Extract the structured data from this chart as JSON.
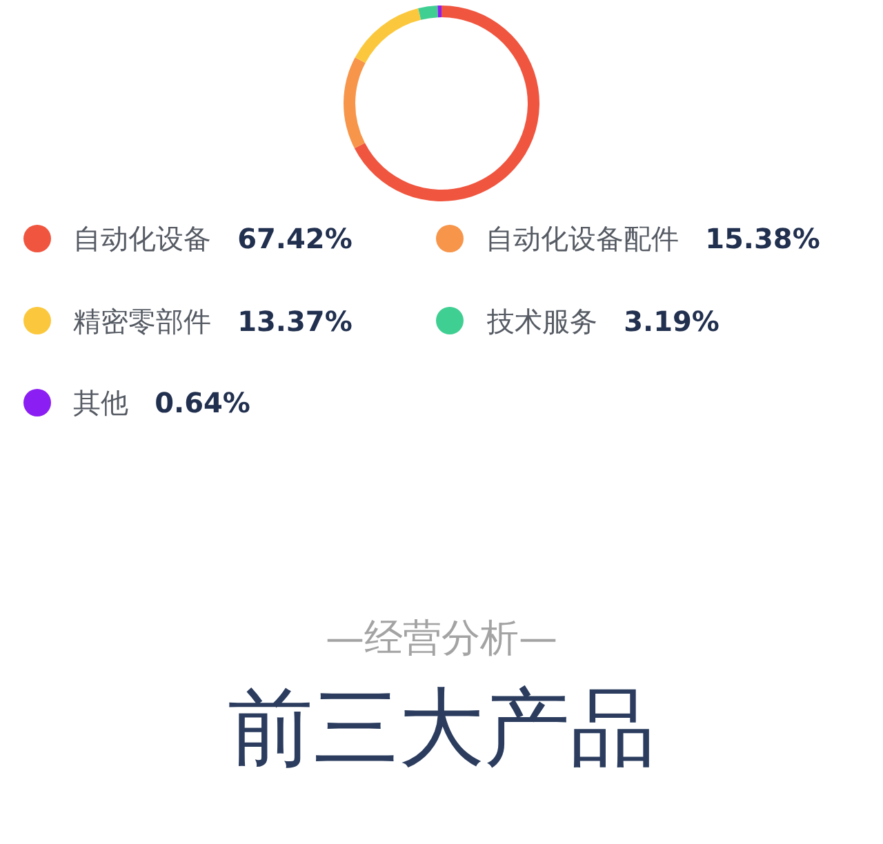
{
  "chart_data": {
    "type": "donut",
    "categories": [
      "自动化设备",
      "自动化设备配件",
      "精密零部件",
      "技术服务",
      "其他"
    ],
    "values": [
      67.42,
      15.38,
      13.37,
      3.19,
      0.64
    ],
    "colors": [
      "#f0553f",
      "#f7954a",
      "#fbc83d",
      "#40cf92",
      "#8b1ef2"
    ],
    "value_labels": [
      "67.42%",
      "15.38%",
      "13.37%",
      "3.19%",
      "0.64%"
    ],
    "legend": "bottom",
    "annotations": [
      "—经营分析—",
      "前三大产品"
    ]
  }
}
